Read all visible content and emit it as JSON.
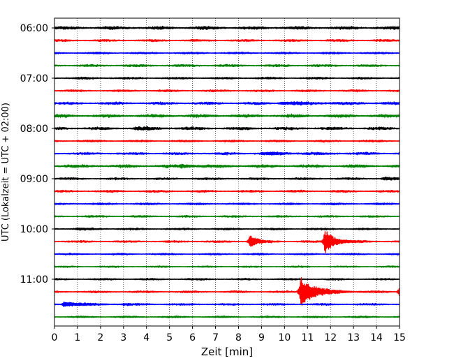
{
  "chart_data": {
    "type": "line",
    "subtype": "seismogram-helicorder",
    "xlabel": "Zeit  [min]",
    "ylabel": "UTC (Lokalzeit = UTC + 02:00)",
    "xlim": [
      0,
      15
    ],
    "x_ticks": [
      0,
      1,
      2,
      3,
      4,
      5,
      6,
      7,
      8,
      9,
      10,
      11,
      12,
      13,
      14,
      15
    ],
    "x_tick_labels": [
      "0",
      "1",
      "2",
      "3",
      "4",
      "5",
      "6",
      "7",
      "8",
      "9",
      "10",
      "11",
      "12",
      "13",
      "14",
      "15"
    ],
    "x_grid": "dotted-vertical",
    "y_ticks": [
      {
        "row": 0,
        "label": "06:00"
      },
      {
        "row": 4,
        "label": "07:00"
      },
      {
        "row": 8,
        "label": "08:00"
      },
      {
        "row": 12,
        "label": "09:00"
      },
      {
        "row": 16,
        "label": "10:00"
      },
      {
        "row": 20,
        "label": "11:00"
      }
    ],
    "trace_colors": [
      "#000000",
      "#ff0000",
      "#0000ff",
      "#008000"
    ],
    "traces": [
      {
        "start": "06:00",
        "color": "#000000",
        "noise": 1.6,
        "events": []
      },
      {
        "start": "06:15",
        "color": "#ff0000",
        "noise": 1.1,
        "events": []
      },
      {
        "start": "06:30",
        "color": "#0000ff",
        "noise": 1.0,
        "events": []
      },
      {
        "start": "06:45",
        "color": "#008000",
        "noise": 1.2,
        "events": []
      },
      {
        "start": "07:00",
        "color": "#000000",
        "noise": 1.1,
        "events": []
      },
      {
        "start": "07:15",
        "color": "#ff0000",
        "noise": 1.0,
        "events": []
      },
      {
        "start": "07:30",
        "color": "#0000ff",
        "noise": 1.3,
        "events": [
          {
            "t": 9.8,
            "amp": 1.2,
            "dur": 4.0
          }
        ]
      },
      {
        "start": "07:45",
        "color": "#008000",
        "noise": 1.6,
        "events": []
      },
      {
        "start": "08:00",
        "color": "#000000",
        "noise": 1.4,
        "events": [
          {
            "t": 3.5,
            "amp": 1.0,
            "dur": 2.0
          }
        ]
      },
      {
        "start": "08:15",
        "color": "#ff0000",
        "noise": 1.0,
        "events": []
      },
      {
        "start": "08:30",
        "color": "#0000ff",
        "noise": 1.2,
        "events": [
          {
            "t": 9.0,
            "amp": 1.0,
            "dur": 4.0
          }
        ]
      },
      {
        "start": "08:45",
        "color": "#008000",
        "noise": 1.5,
        "events": [
          {
            "t": 5.5,
            "amp": 2.0,
            "dur": 1.5
          }
        ]
      },
      {
        "start": "09:00",
        "color": "#000000",
        "noise": 1.1,
        "events": [
          {
            "t": 14.3,
            "amp": 1.5,
            "dur": 0.7
          }
        ]
      },
      {
        "start": "09:15",
        "color": "#ff0000",
        "noise": 1.1,
        "events": []
      },
      {
        "start": "09:30",
        "color": "#0000ff",
        "noise": 1.0,
        "events": []
      },
      {
        "start": "09:45",
        "color": "#008000",
        "noise": 1.0,
        "events": []
      },
      {
        "start": "10:00",
        "color": "#000000",
        "noise": 1.0,
        "events": [
          {
            "t": 1.0,
            "amp": 1.0,
            "dur": 1.0
          }
        ]
      },
      {
        "start": "10:15",
        "color": "#ff0000",
        "noise": 1.0,
        "events": [
          {
            "t": 8.5,
            "amp": 10.0,
            "dur": 0.6
          },
          {
            "t": 11.75,
            "amp": 17.0,
            "dur": 0.9
          }
        ]
      },
      {
        "start": "10:30",
        "color": "#0000ff",
        "noise": 0.9,
        "events": []
      },
      {
        "start": "10:45",
        "color": "#008000",
        "noise": 0.8,
        "events": []
      },
      {
        "start": "11:00",
        "color": "#000000",
        "noise": 0.9,
        "events": []
      },
      {
        "start": "11:15",
        "color": "#ff0000",
        "noise": 1.0,
        "events": [
          {
            "t": 10.7,
            "amp": 22.0,
            "dur": 1.3
          },
          {
            "t": 15.0,
            "amp": 9.0,
            "dur": 0.4
          }
        ]
      },
      {
        "start": "11:30",
        "color": "#0000ff",
        "noise": 1.0,
        "events": [
          {
            "t": 0.4,
            "amp": 3.5,
            "dur": 1.5
          },
          {
            "t": 3.0,
            "amp": 1.2,
            "dur": 0.5
          }
        ]
      },
      {
        "start": "11:45",
        "color": "#008000",
        "noise": 0.9,
        "events": []
      }
    ]
  }
}
